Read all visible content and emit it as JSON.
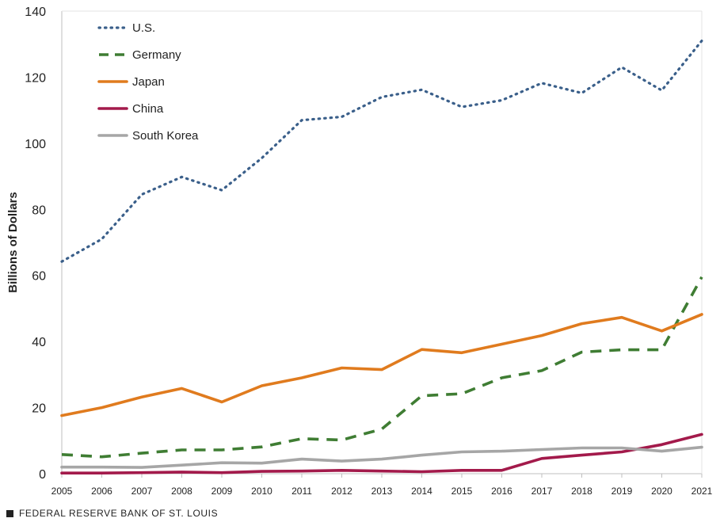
{
  "chart_data": {
    "type": "line",
    "ylabel": "Billions of Dollars",
    "xlabel": "",
    "x": [
      "2005",
      "2006",
      "2007",
      "2008",
      "2009",
      "2010",
      "2011",
      "2012",
      "2013",
      "2014",
      "2015",
      "2016",
      "2017",
      "2018",
      "2019",
      "2020",
      "2021"
    ],
    "ylim": [
      0,
      140
    ],
    "yticks": [
      0,
      20,
      40,
      60,
      80,
      100,
      120,
      140
    ],
    "grid": false,
    "legend_position": "top-left",
    "series": [
      {
        "name": "U.S.",
        "color": "#3a5f8a",
        "style": "dotted",
        "values": [
          64.2,
          71,
          84.5,
          89.8,
          85.8,
          95.5,
          107,
          108,
          114,
          116.2,
          111,
          113,
          118.2,
          115.2,
          123,
          116,
          131
        ]
      },
      {
        "name": "Germany",
        "color": "#3f7d33",
        "style": "dashed",
        "values": [
          5.8,
          5.1,
          6.2,
          7.2,
          7.2,
          8.1,
          10.6,
          10.2,
          13.5,
          23.6,
          24.2,
          29,
          31.2,
          36.8,
          37.5,
          37.5,
          59.5
        ]
      },
      {
        "name": "Japan",
        "color": "#e07b1e",
        "style": "solid",
        "values": [
          17.6,
          20,
          23.2,
          25.8,
          21.7,
          26.6,
          29,
          32,
          31.5,
          37.6,
          36.6,
          39.2,
          41.8,
          45.4,
          47.3,
          43.2,
          48.2
        ]
      },
      {
        "name": "China",
        "color": "#a31a4b",
        "style": "solid",
        "values": [
          0.2,
          0.2,
          0.3,
          0.5,
          0.3,
          0.7,
          0.8,
          1.0,
          0.8,
          0.6,
          1.0,
          1.0,
          4.6,
          5.6,
          6.6,
          8.8,
          11.9
        ]
      },
      {
        "name": "South Korea",
        "color": "#a6a6a6",
        "style": "solid",
        "values": [
          2.0,
          2.0,
          1.9,
          2.6,
          3.3,
          3.2,
          4.4,
          3.8,
          4.4,
          5.6,
          6.6,
          6.8,
          7.3,
          7.8,
          7.8,
          6.8,
          8.0
        ]
      }
    ]
  },
  "footer": {
    "text": "FEDERAL RESERVE BANK OF ST. LOUIS"
  }
}
